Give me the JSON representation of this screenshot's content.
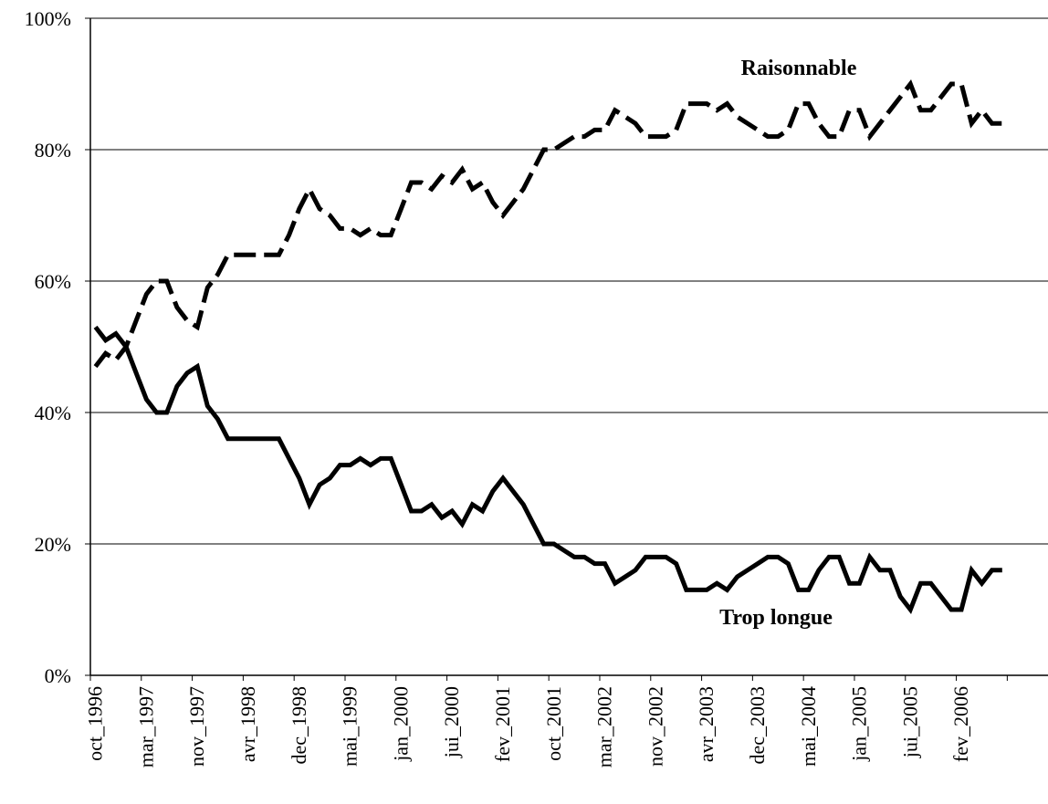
{
  "chart_data": {
    "type": "line",
    "annotations": [
      "Raisonnable",
      "Trop longue"
    ],
    "categories": [
      "oct_1996",
      null,
      null,
      null,
      null,
      "mar_1997",
      null,
      null,
      null,
      null,
      "nov_1997",
      null,
      null,
      null,
      null,
      "avr_1998",
      null,
      null,
      null,
      null,
      "dec_1998",
      null,
      null,
      null,
      null,
      "mai_1999",
      null,
      null,
      null,
      null,
      "jan_2000",
      null,
      null,
      null,
      null,
      "jui_2000",
      null,
      null,
      null,
      null,
      "fev_2001",
      null,
      null,
      null,
      null,
      "oct_2001",
      null,
      null,
      null,
      null,
      "mar_2002",
      null,
      null,
      null,
      null,
      "nov_2002",
      null,
      null,
      null,
      null,
      "avr_2003",
      null,
      null,
      null,
      null,
      "dec_2003",
      null,
      null,
      null,
      null,
      "mai_2004",
      null,
      null,
      null,
      null,
      "jan_2005",
      null,
      null,
      null,
      null,
      "jui_2005",
      null,
      null,
      null,
      null,
      "fev_2006",
      null,
      null,
      null,
      null,
      null,
      null,
      null,
      null
    ],
    "series": [
      {
        "name": "Raisonnable",
        "color": "#000000",
        "dashed": true,
        "values": [
          47,
          49,
          48,
          50,
          54,
          58,
          60,
          60,
          56,
          54,
          53,
          59,
          61,
          64,
          64,
          64,
          64,
          64,
          64,
          67,
          71,
          74,
          71,
          70,
          68,
          68,
          67,
          68,
          67,
          67,
          71,
          75,
          75,
          74,
          76,
          75,
          77,
          74,
          75,
          72,
          70,
          72,
          74,
          77,
          80,
          80,
          81,
          82,
          82,
          83,
          83,
          86,
          85,
          84,
          82,
          82,
          82,
          83,
          87,
          87,
          87,
          86,
          87,
          85,
          84,
          83,
          82,
          82,
          83,
          87,
          87,
          84,
          82,
          82,
          86,
          86,
          82,
          84,
          86,
          88,
          90,
          86,
          86,
          88,
          90,
          90,
          84,
          86,
          84,
          84,
          null,
          null,
          null,
          null
        ]
      },
      {
        "name": "Trop longue",
        "color": "#000000",
        "dashed": false,
        "values": [
          53,
          51,
          52,
          50,
          46,
          42,
          40,
          40,
          44,
          46,
          47,
          41,
          39,
          36,
          36,
          36,
          36,
          36,
          36,
          33,
          30,
          26,
          29,
          30,
          32,
          32,
          33,
          32,
          33,
          33,
          29,
          25,
          25,
          26,
          24,
          25,
          23,
          26,
          25,
          28,
          30,
          28,
          26,
          23,
          20,
          20,
          19,
          18,
          18,
          17,
          17,
          14,
          15,
          16,
          18,
          18,
          18,
          17,
          13,
          13,
          13,
          14,
          13,
          15,
          16,
          17,
          18,
          18,
          17,
          13,
          13,
          16,
          18,
          18,
          14,
          14,
          18,
          16,
          16,
          12,
          10,
          14,
          14,
          12,
          10,
          10,
          16,
          14,
          16,
          16,
          null,
          null,
          null,
          null
        ]
      }
    ],
    "ylim": [
      0,
      100
    ],
    "yticks": [
      {
        "value": 0,
        "label": "0%"
      },
      {
        "value": 20,
        "label": "20%"
      },
      {
        "value": 40,
        "label": "40%"
      },
      {
        "value": 60,
        "label": "60%"
      },
      {
        "value": 80,
        "label": "80%"
      },
      {
        "value": 100,
        "label": "100%"
      }
    ],
    "grid": true
  }
}
